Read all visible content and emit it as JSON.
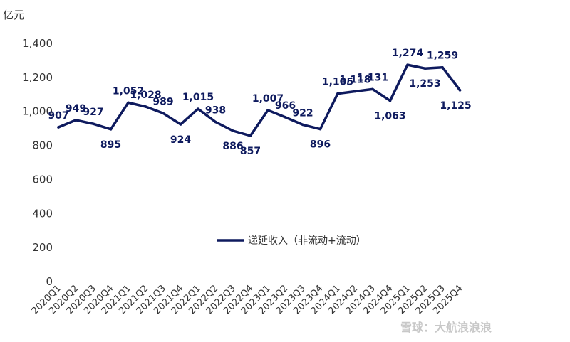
{
  "chart_data": {
    "type": "line",
    "unit": "亿元",
    "categories": [
      "2020Q1",
      "2020Q2",
      "2020Q3",
      "2020Q4",
      "2021Q1",
      "2021Q2",
      "2021Q3",
      "2021Q4",
      "2022Q1",
      "2022Q2",
      "2022Q3",
      "2022Q4",
      "2023Q1",
      "2023Q2",
      "2023Q3",
      "2023Q4",
      "2024Q1",
      "2024Q2",
      "2024Q3",
      "2024Q4",
      "2025Q1",
      "2025Q2",
      "2025Q3",
      "2025Q4"
    ],
    "series": [
      {
        "name": "递延收入（非流动+流动）",
        "values": [
          907,
          949,
          927,
          895,
          1052,
          1028,
          989,
          924,
          1015,
          938,
          886,
          857,
          1007,
          966,
          922,
          896,
          1105,
          1118,
          1131,
          1063,
          1274,
          1253,
          1259,
          1125
        ],
        "labels": [
          "907",
          "949",
          "927",
          "895",
          "1,052",
          "1,028",
          "989",
          "924",
          "1,015",
          "938",
          "886",
          "857",
          "1,007",
          "966",
          "922",
          "896",
          "1,105",
          "1,118",
          "1,131",
          "1,063",
          "1,274",
          "1,253",
          "1,259",
          "1,125"
        ],
        "label_pos": [
          "above",
          "above",
          "above",
          "below",
          "above",
          "above",
          "above",
          "below",
          "above",
          "above",
          "below",
          "below",
          "above",
          "above",
          "above",
          "below",
          "above",
          "above",
          "above",
          "below",
          "above",
          "below",
          "above",
          "below"
        ]
      }
    ],
    "yticks": [
      "0",
      "200",
      "400",
      "600",
      "800",
      "1,000",
      "1,200",
      "1,400"
    ],
    "ylim": [
      0,
      1400
    ],
    "legend_position": "center",
    "line_color": "#0e1a5e"
  },
  "watermark": "雪球：大航浪浪浪"
}
